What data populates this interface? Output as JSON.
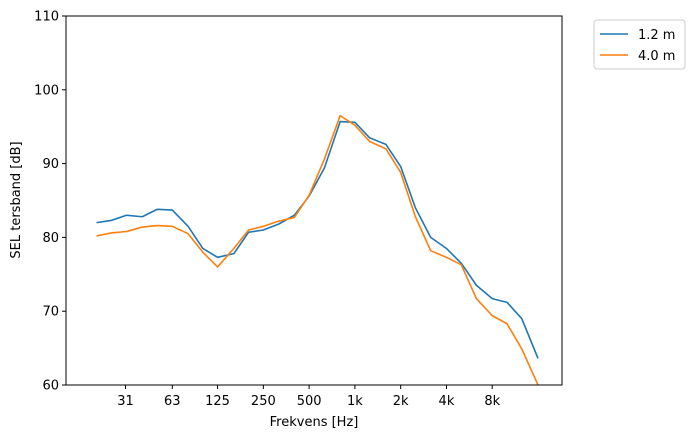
{
  "chart_data": {
    "type": "line",
    "title": "",
    "xlabel": "Frekvens [Hz]",
    "ylabel": "SEL tersband [dB]",
    "x_scale": "log",
    "ylim": [
      60,
      110
    ],
    "yticks": [
      60,
      70,
      80,
      90,
      100,
      110
    ],
    "xticks": [
      {
        "value": 31,
        "label": "31"
      },
      {
        "value": 63,
        "label": "63"
      },
      {
        "value": 125,
        "label": "125"
      },
      {
        "value": 250,
        "label": "250"
      },
      {
        "value": 500,
        "label": "500"
      },
      {
        "value": 1000,
        "label": "1k"
      },
      {
        "value": 2000,
        "label": "2k"
      },
      {
        "value": 4000,
        "label": "4k"
      },
      {
        "value": 8000,
        "label": "8k"
      }
    ],
    "x": [
      20,
      25,
      31.5,
      40,
      50,
      63,
      80,
      100,
      125,
      160,
      200,
      250,
      315,
      400,
      500,
      630,
      800,
      1000,
      1250,
      1600,
      2000,
      2500,
      3150,
      4000,
      5000,
      6300,
      8000,
      10000,
      12500,
      16000
    ],
    "series": [
      {
        "name": "1.2 m",
        "color": "#1f77b4",
        "values": [
          82.0,
          82.3,
          83.0,
          82.8,
          83.8,
          83.7,
          81.5,
          78.5,
          77.3,
          77.8,
          80.7,
          81.0,
          81.8,
          83.0,
          85.6,
          89.4,
          95.7,
          95.6,
          93.5,
          92.6,
          89.6,
          84.0,
          80.0,
          78.5,
          76.5,
          73.5,
          71.7,
          71.2,
          69.0,
          63.6
        ]
      },
      {
        "name": "4.0 m",
        "color": "#ff7f0e",
        "values": [
          80.2,
          80.6,
          80.8,
          81.4,
          81.6,
          81.5,
          80.5,
          78.0,
          76.0,
          78.5,
          81.0,
          81.5,
          82.2,
          82.7,
          85.7,
          90.6,
          96.5,
          95.2,
          93.0,
          92.0,
          88.8,
          82.8,
          78.2,
          77.3,
          76.3,
          71.7,
          69.4,
          68.3,
          64.9,
          60.0
        ]
      }
    ],
    "legend": {
      "position": "outside-top-right"
    },
    "grid": false
  }
}
